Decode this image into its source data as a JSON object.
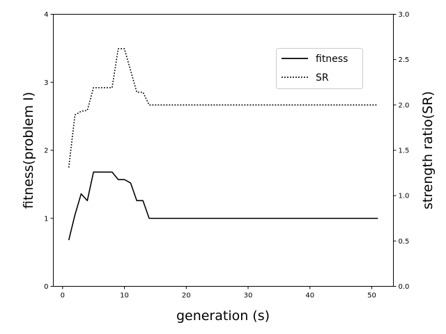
{
  "chart_data": {
    "type": "line",
    "title": "",
    "xlabel": "generation (s)",
    "ylabel_left": "fitness(problem I)",
    "ylabel_right": "strength ratio(SR)",
    "xlim": [
      -1.5,
      53.5
    ],
    "xticks": [
      0,
      10,
      20,
      30,
      40,
      50
    ],
    "ylim_left": [
      0,
      4
    ],
    "yticks_left": [
      0,
      1,
      2,
      3,
      4
    ],
    "ylim_right": [
      0.0,
      3.0
    ],
    "yticks_right": [
      "0.0",
      "0.5",
      "1.0",
      "1.5",
      "2.0",
      "2.5",
      "3.0"
    ],
    "grid": false,
    "legend_position": "upper right",
    "series": [
      {
        "name": "fitness",
        "axis": "left",
        "style": "solid",
        "color": "#000000",
        "x": [
          1,
          2,
          3,
          4,
          5,
          6,
          7,
          8,
          9,
          10,
          11,
          12,
          13,
          14,
          51
        ],
        "y": [
          0.68,
          1.05,
          1.36,
          1.26,
          1.68,
          1.68,
          1.68,
          1.68,
          1.57,
          1.57,
          1.52,
          1.26,
          1.26,
          1.0,
          1.0
        ]
      },
      {
        "name": "SR",
        "axis": "right",
        "style": "dotted",
        "color": "#000000",
        "x": [
          1,
          2,
          3,
          4,
          5,
          6,
          7,
          8,
          9,
          10,
          11,
          12,
          13,
          14,
          51
        ],
        "y": [
          1.31,
          1.89,
          1.93,
          1.94,
          2.19,
          2.19,
          2.19,
          2.19,
          2.62,
          2.62,
          2.38,
          2.14,
          2.14,
          2.0,
          2.0
        ]
      }
    ]
  }
}
